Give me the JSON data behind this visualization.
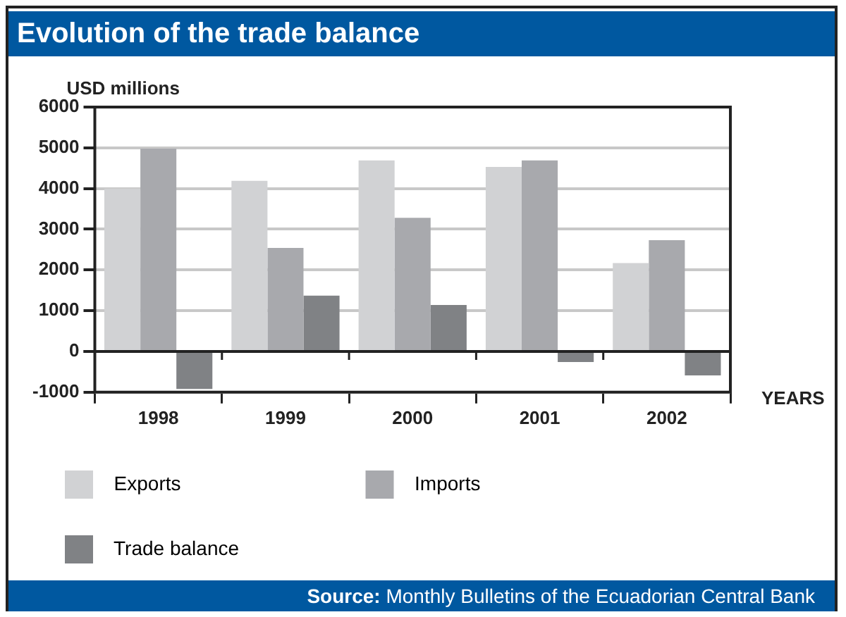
{
  "chart_data": {
    "type": "bar",
    "title": "Evolution of the trade balance",
    "ylabel": "USD millions",
    "xlabel": "YEARS",
    "categories": [
      "1998",
      "1999",
      "2000",
      "2001",
      "2002"
    ],
    "series": [
      {
        "name": "Exports",
        "color": "#d1d2d4",
        "values": [
          4000,
          4190,
          4690,
          4530,
          2170
        ]
      },
      {
        "name": "Imports",
        "color": "#a8a9ad",
        "values": [
          4980,
          2540,
          3280,
          4690,
          2730
        ]
      },
      {
        "name": "Trade balance",
        "color": "#808285",
        "values": [
          -920,
          1370,
          1140,
          -260,
          -590
        ]
      }
    ],
    "ylim": [
      -1000,
      6000
    ],
    "yticks": [
      -1000,
      0,
      1000,
      2000,
      3000,
      4000,
      5000,
      6000
    ],
    "grid": "y",
    "legend": "bottom",
    "annotations": [
      "Source: Monthly Bulletins of the Ecuadorian Central Bank"
    ]
  }
}
